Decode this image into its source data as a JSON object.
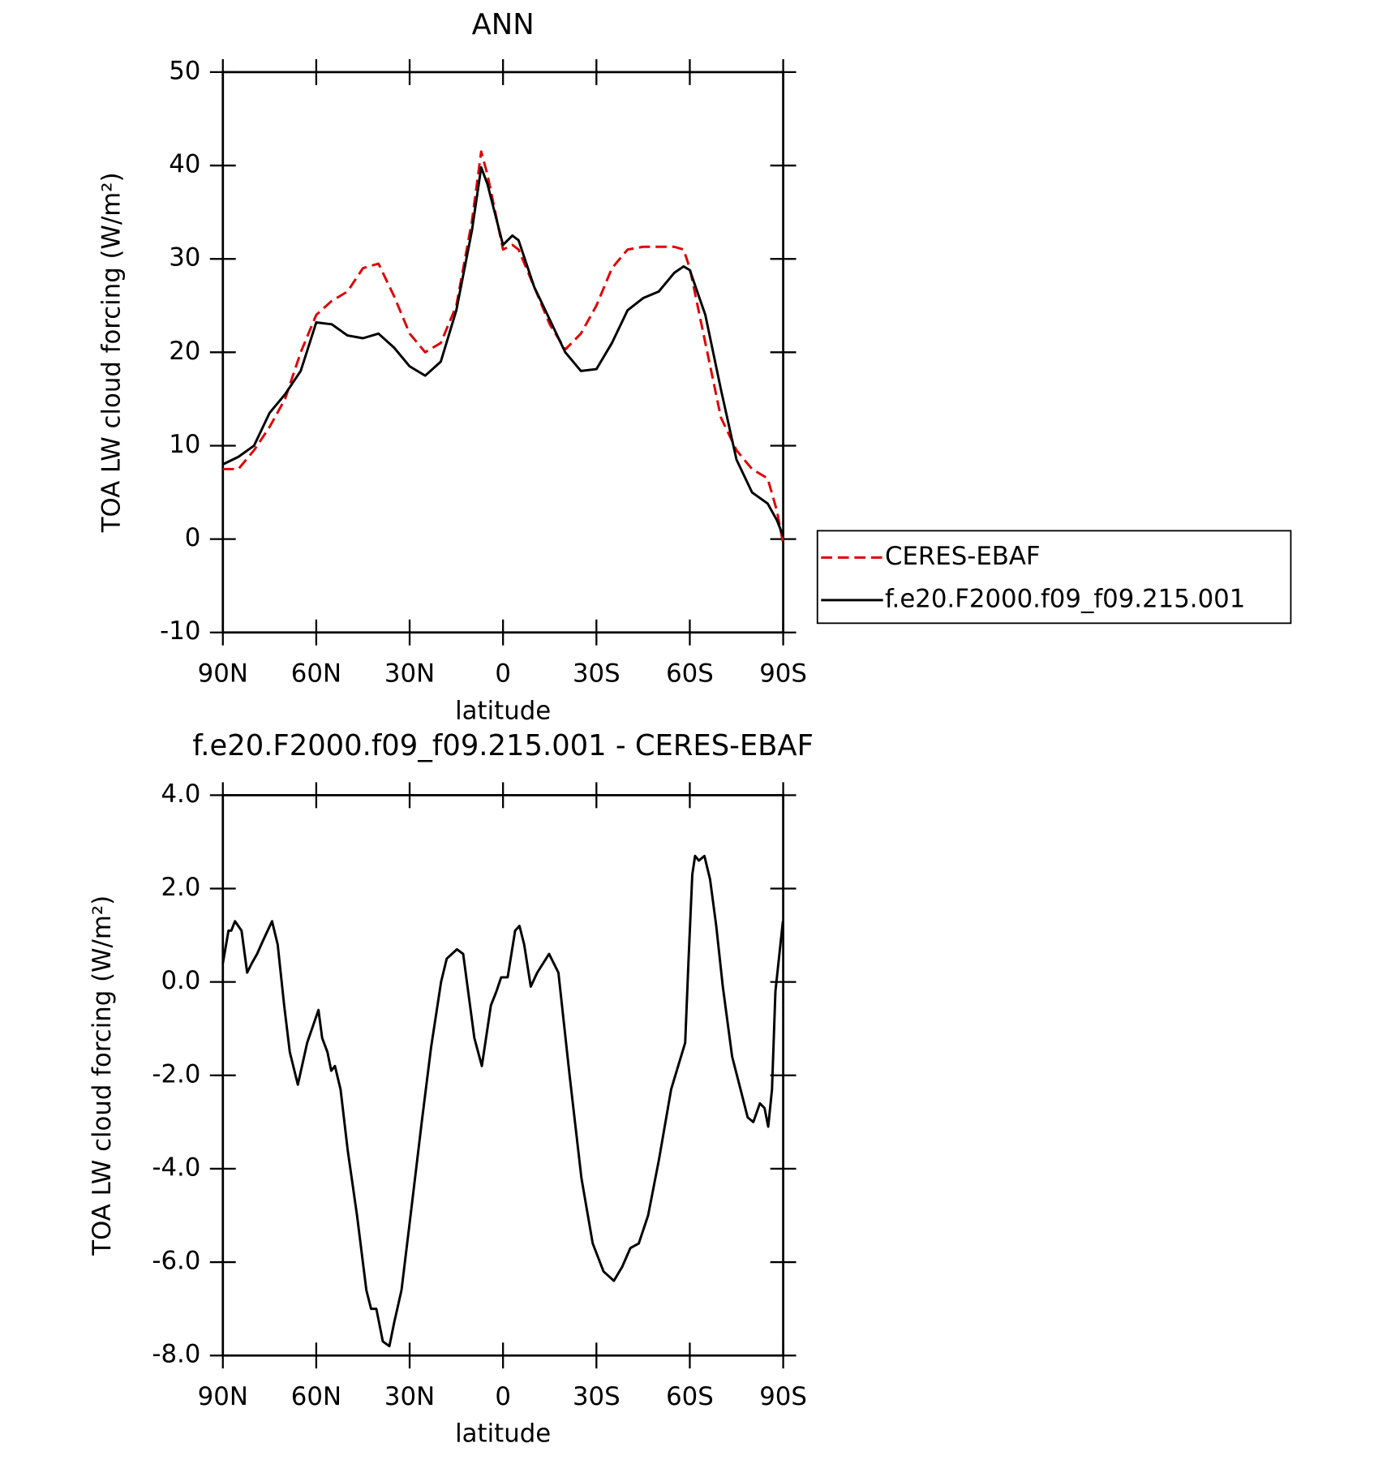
{
  "chart_data": [
    {
      "type": "line",
      "title": "ANN",
      "xlabel": "latitude",
      "ylabel": "TOA LW cloud forcing (W/m²)",
      "x": [
        90,
        85,
        80,
        75,
        70,
        65,
        60,
        55,
        50,
        45,
        40,
        35,
        30,
        25,
        20,
        15,
        10,
        7,
        5,
        0,
        -3,
        -5,
        -10,
        -15,
        -20,
        -25,
        -30,
        -35,
        -40,
        -45,
        -50,
        -55,
        -58,
        -60,
        -65,
        -70,
        -75,
        -80,
        -85,
        -88,
        -90
      ],
      "series": [
        {
          "name": "CERES-EBAF",
          "color": "#e00000",
          "dash": "dashed",
          "values": [
            7.5,
            7.5,
            9.5,
            12,
            15,
            20,
            24,
            25.5,
            26.5,
            29,
            29.5,
            26,
            22,
            20,
            21,
            25,
            34,
            41.5,
            39,
            31,
            31.5,
            31,
            27,
            23,
            20.3,
            22,
            25,
            29,
            31,
            31.3,
            31.3,
            31.3,
            31,
            29,
            21,
            13,
            9.5,
            7.5,
            6.5,
            3,
            -0.5
          ]
        },
        {
          "name": "f.e20.F2000.f09_f09.215.001",
          "color": "#000000",
          "dash": "solid",
          "values": [
            8,
            8.8,
            10,
            13.5,
            15.5,
            18,
            23.2,
            23,
            21.8,
            21.5,
            22,
            20.5,
            18.5,
            17.5,
            19,
            24.5,
            33,
            39.8,
            38,
            31.5,
            32.5,
            32,
            27,
            23.5,
            20,
            18,
            18.2,
            21,
            24.5,
            25.8,
            26.5,
            28.5,
            29.2,
            28.8,
            24,
            16,
            8.5,
            5,
            3.8,
            2,
            0.3
          ]
        }
      ],
      "xlim": [
        90,
        -90
      ],
      "xticks": [
        {
          "value": 90,
          "label": "90N"
        },
        {
          "value": 60,
          "label": "60N"
        },
        {
          "value": 30,
          "label": "30N"
        },
        0,
        {
          "value": -30,
          "label": "30S"
        },
        {
          "value": -60,
          "label": "60S"
        },
        {
          "value": -90,
          "label": "90S"
        }
      ],
      "ylim": [
        -10,
        50
      ],
      "yticks": [
        -10,
        0,
        10,
        20,
        30,
        40,
        50
      ],
      "legend": "right"
    },
    {
      "type": "line",
      "title": "f.e20.F2000.f09_f09.215.001 - CERES-EBAF",
      "xlabel": "latitude",
      "ylabel": "TOA LW cloud forcing (W/m²)",
      "x": [
        90,
        88.2,
        87.3,
        86.1,
        84,
        82.2,
        80.7,
        79,
        77,
        74.2,
        72.4,
        70.3,
        68.5,
        65.9,
        62.9,
        59.3,
        58.1,
        56.4,
        55.2,
        54,
        52.2,
        49.9,
        46.9,
        43.9,
        42.4,
        40.7,
        38.6,
        36.5,
        35,
        32.6,
        29.7,
        26.1,
        23.1,
        19.9,
        18.1,
        14.8,
        12.8,
        9.2,
        6.8,
        3.9,
        2.1,
        0.6,
        -1.5,
        -3.9,
        -5.3,
        -6.8,
        -8.9,
        -11,
        -14.8,
        -17.8,
        -21.4,
        -25.2,
        -28.8,
        -32.3,
        -35.6,
        -38.3,
        -40.9,
        -43.6,
        -46.6,
        -50.1,
        -54,
        -58.5,
        -59.6,
        -60.8,
        -61.7,
        -62.9,
        -64.7,
        -66.5,
        -68.5,
        -70.6,
        -73.6,
        -76.3,
        -78.6,
        -80.4,
        -82.5,
        -84,
        -85.2,
        -86.4,
        -87.5,
        -89.9
      ],
      "color": "#000000",
      "values": [
        0.4,
        1.1,
        1.1,
        1.3,
        1.1,
        0.2,
        0.4,
        0.6,
        0.9,
        1.3,
        0.8,
        -0.5,
        -1.5,
        -2.2,
        -1.3,
        -0.6,
        -1.2,
        -1.5,
        -1.9,
        -1.8,
        -2.3,
        -3.6,
        -5.0,
        -6.6,
        -7.0,
        -7.0,
        -7.7,
        -7.8,
        -7.3,
        -6.6,
        -5.0,
        -3.0,
        -1.4,
        0,
        0.5,
        0.7,
        0.6,
        -1.2,
        -1.8,
        -0.5,
        -0.2,
        0.1,
        0.1,
        1.1,
        1.2,
        0.8,
        -0.1,
        0.2,
        0.6,
        0.2,
        -2.0,
        -4.2,
        -5.6,
        -6.2,
        -6.4,
        -6.1,
        -5.7,
        -5.6,
        -5.0,
        -3.8,
        -2.3,
        -1.3,
        0.5,
        2.3,
        2.7,
        2.6,
        2.7,
        2.2,
        1.2,
        -0.1,
        -1.6,
        -2.3,
        -2.9,
        -3.0,
        -2.6,
        -2.7,
        -3.1,
        -2.3,
        -0.2,
        1.3
      ],
      "xlim": [
        90,
        -90
      ],
      "xticks": [
        {
          "value": 90,
          "label": "90N"
        },
        {
          "value": 60,
          "label": "60N"
        },
        {
          "value": 30,
          "label": "30N"
        },
        0,
        {
          "value": -30,
          "label": "30S"
        },
        {
          "value": -60,
          "label": "60S"
        },
        {
          "value": -90,
          "label": "90S"
        }
      ],
      "ylim": [
        -8,
        4
      ],
      "yticks": [
        {
          "value": -8,
          "label": "-8.0"
        },
        {
          "value": -6,
          "label": "-6.0"
        },
        {
          "value": -4,
          "label": "-4.0"
        },
        {
          "value": -2,
          "label": "-2.0"
        },
        {
          "value": 0,
          "label": "0.0"
        },
        {
          "value": 2,
          "label": "2.0"
        },
        {
          "value": 4,
          "label": "4.0"
        }
      ]
    }
  ]
}
